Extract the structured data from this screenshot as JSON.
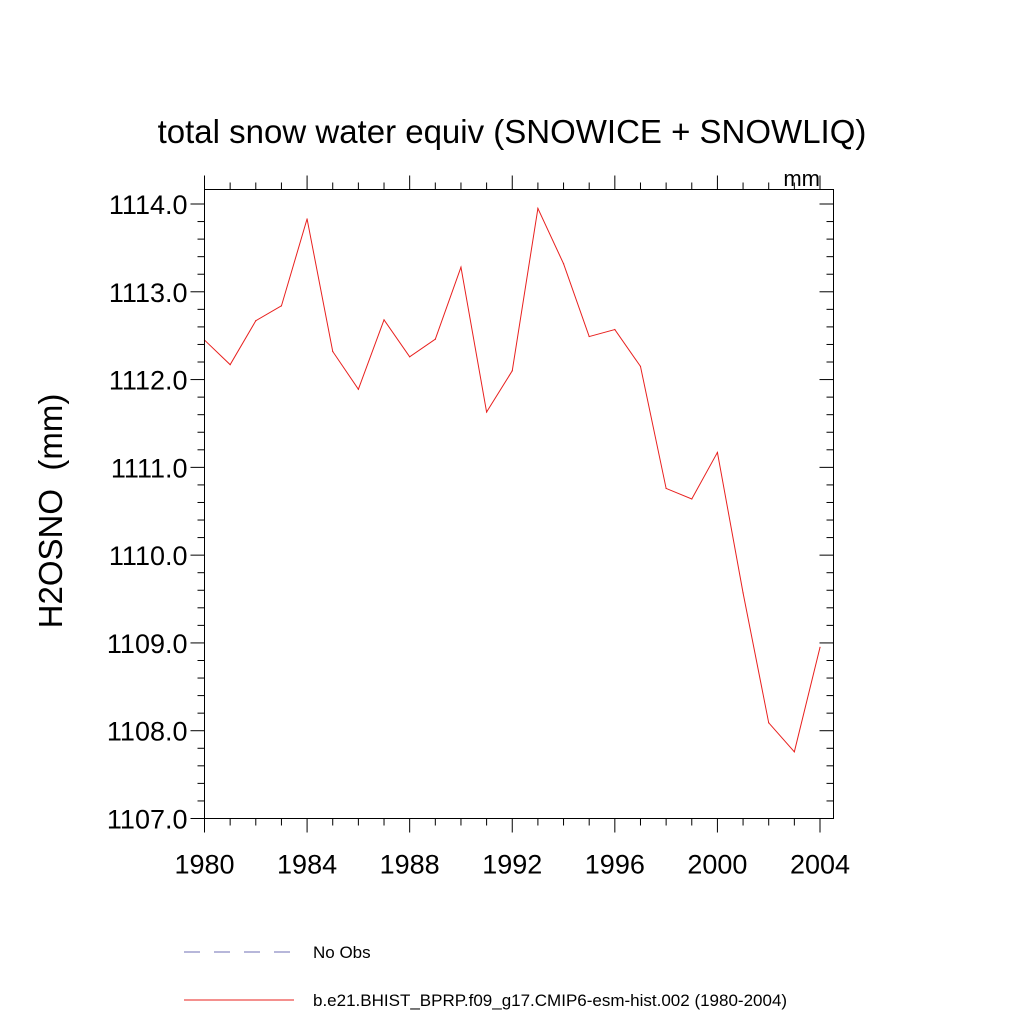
{
  "chart_data": {
    "type": "line",
    "title": "total snow water equiv (SNOWICE + SNOWLIQ)",
    "units_label": "mm",
    "ylabel": "H2OSNO  (mm)",
    "xlabel": "",
    "xlim": [
      1980,
      2004
    ],
    "ylim": [
      1107.0,
      1114.0
    ],
    "x_ticks": [
      "1980",
      "1984",
      "1988",
      "1992",
      "1996",
      "2000",
      "2004"
    ],
    "x_tick_values": [
      1980,
      1984,
      1988,
      1992,
      1996,
      2000,
      2004
    ],
    "y_ticks": [
      "1107.0",
      "1108.0",
      "1109.0",
      "1110.0",
      "1111.0",
      "1112.0",
      "1113.0",
      "1114.0"
    ],
    "y_tick_values": [
      1107.0,
      1108.0,
      1109.0,
      1110.0,
      1111.0,
      1112.0,
      1113.0,
      1114.0
    ],
    "grid": false,
    "series": [
      {
        "name": "b.e21.BHIST_BPRP.f09_g17.CMIP6-esm-hist.002 (1980-2004)",
        "color": "#e8201e",
        "style": "solid",
        "x": [
          1980,
          1981,
          1982,
          1983,
          1984,
          1985,
          1986,
          1987,
          1988,
          1989,
          1990,
          1991,
          1992,
          1993,
          1994,
          1995,
          1996,
          1997,
          1998,
          1999,
          2000,
          2001,
          2002,
          2003,
          2004
        ],
        "values": [
          1112.45,
          1112.17,
          1112.67,
          1112.84,
          1113.83,
          1112.32,
          1111.89,
          1112.68,
          1112.26,
          1112.46,
          1113.28,
          1111.63,
          1112.1,
          1113.95,
          1113.32,
          1112.49,
          1112.57,
          1112.15,
          1110.76,
          1110.64,
          1111.17,
          1109.57,
          1108.09,
          1107.76,
          1108.95
        ]
      }
    ],
    "legend": {
      "position": "bottom",
      "entries": [
        {
          "label": "No Obs",
          "color": "#6f6fb5",
          "style": "dashed"
        },
        {
          "label": "b.e21.BHIST_BPRP.f09_g17.CMIP6-esm-hist.002 (1980-2004)",
          "color": "#e8201e",
          "style": "solid"
        }
      ]
    }
  }
}
